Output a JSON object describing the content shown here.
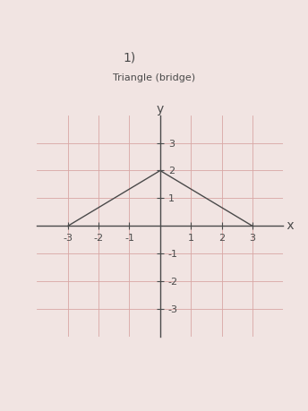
{
  "chart_data": {
    "type": "line",
    "title": "1)",
    "subtitle": "Triangle (bridge)",
    "x_label": "x",
    "y_label": "y",
    "x": [
      -3,
      0,
      3
    ],
    "values": [
      0,
      2,
      0
    ],
    "color": "#4a4a4a",
    "xlim": [
      -4,
      4
    ],
    "ylim": [
      -4,
      4
    ],
    "xticks": [
      -3,
      -2,
      -1,
      1,
      2,
      3
    ],
    "yticks": [
      -3,
      -2,
      -1,
      1,
      2,
      3
    ],
    "grid": true
  }
}
